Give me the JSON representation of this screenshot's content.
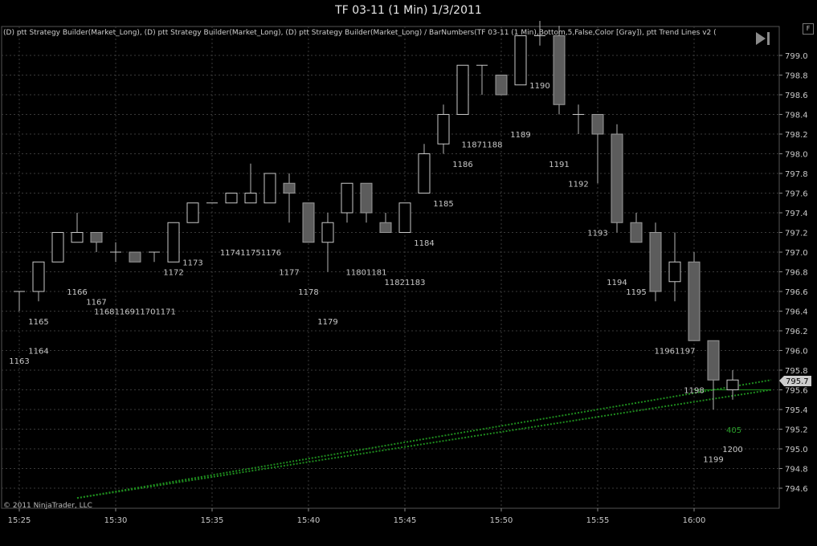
{
  "window": {
    "title": "TF 03-11 (1 Min)  1/3/2011",
    "flag_button": "F"
  },
  "chart": {
    "indicator_legend": "(D)  ptt Strategy Builder(Market_Long), (D)  ptt Strategy Builder(Market_Long), (D)  ptt Strategy Builder(Market_Long) / BarNumbers(TF 03-11 (1 Min),Bottom,5,False,Color [Gray]),  ptt Trend Lines v2  (",
    "copyright": "© 2011 NinjaTrader, LLC",
    "current_price": "795.7",
    "trend_value_label": "405",
    "play_icon": "skip-forward-icon",
    "colors": {
      "background": "#000000",
      "grid": "#3a3a3a",
      "up_candle_fill": "#000000",
      "up_candle_stroke": "#c8c8c8",
      "down_candle_fill": "#5c5c5c",
      "down_candle_stroke": "#9a9a9a",
      "wick": "#b4b4b4",
      "trend_line": "#1e8c1e",
      "label_text": "#c8c8c8",
      "price_marker_bg": "#cccccc"
    }
  },
  "chart_data": {
    "type": "candlestick",
    "y_axis": {
      "range": [
        794.5,
        799.1
      ],
      "ticks": [
        "794.6",
        "794.8",
        "795.0",
        "795.2",
        "795.4",
        "795.6",
        "795.8",
        "796.0",
        "796.2",
        "796.4",
        "796.6",
        "796.8",
        "797.0",
        "797.2",
        "797.4",
        "797.6",
        "797.8",
        "798.0",
        "798.2",
        "798.4",
        "798.6",
        "798.8",
        "799.0"
      ]
    },
    "x_axis": {
      "ticks": [
        "15:25",
        "15:30",
        "15:35",
        "15:40",
        "15:45",
        "15:50",
        "15:55",
        "16:00"
      ]
    },
    "time_range": [
      "15:24.6",
      "16:03.3"
    ],
    "grid": true,
    "candles": [
      {
        "t": "15:25",
        "o": 796.6,
        "h": 796.6,
        "l": 796.4,
        "c": 796.6
      },
      {
        "t": "15:26",
        "o": 796.6,
        "h": 796.9,
        "l": 796.5,
        "c": 796.9
      },
      {
        "t": "15:27",
        "o": 796.9,
        "h": 797.2,
        "l": 796.9,
        "c": 797.2
      },
      {
        "t": "15:28",
        "o": 797.1,
        "h": 797.4,
        "l": 797.1,
        "c": 797.2
      },
      {
        "t": "15:29",
        "o": 797.2,
        "h": 797.2,
        "l": 797.0,
        "c": 797.1
      },
      {
        "t": "15:30",
        "o": 797.0,
        "h": 797.1,
        "l": 796.9,
        "c": 797.0
      },
      {
        "t": "15:31",
        "o": 797.0,
        "h": 797.0,
        "l": 796.9,
        "c": 796.9
      },
      {
        "t": "15:32",
        "o": 797.0,
        "h": 797.0,
        "l": 796.9,
        "c": 797.0
      },
      {
        "t": "15:33",
        "o": 796.9,
        "h": 797.3,
        "l": 796.9,
        "c": 797.3
      },
      {
        "t": "15:34",
        "o": 797.3,
        "h": 797.5,
        "l": 797.3,
        "c": 797.5
      },
      {
        "t": "15:35",
        "o": 797.5,
        "h": 797.5,
        "l": 797.5,
        "c": 797.5
      },
      {
        "t": "15:36",
        "o": 797.5,
        "h": 797.6,
        "l": 797.5,
        "c": 797.6
      },
      {
        "t": "15:37",
        "o": 797.5,
        "h": 797.9,
        "l": 797.5,
        "c": 797.6
      },
      {
        "t": "15:38",
        "o": 797.5,
        "h": 797.8,
        "l": 797.5,
        "c": 797.8
      },
      {
        "t": "15:39",
        "o": 797.7,
        "h": 797.8,
        "l": 797.3,
        "c": 797.6
      },
      {
        "t": "15:40",
        "o": 797.5,
        "h": 797.5,
        "l": 797.1,
        "c": 797.1
      },
      {
        "t": "15:41",
        "o": 797.1,
        "h": 797.4,
        "l": 796.8,
        "c": 797.3
      },
      {
        "t": "15:42",
        "o": 797.4,
        "h": 797.7,
        "l": 797.3,
        "c": 797.7
      },
      {
        "t": "15:43",
        "o": 797.7,
        "h": 797.7,
        "l": 797.3,
        "c": 797.4
      },
      {
        "t": "15:44",
        "o": 797.3,
        "h": 797.4,
        "l": 797.2,
        "c": 797.2
      },
      {
        "t": "15:45",
        "o": 797.2,
        "h": 797.5,
        "l": 797.2,
        "c": 797.5
      },
      {
        "t": "15:46",
        "o": 797.6,
        "h": 798.1,
        "l": 797.6,
        "c": 798.0
      },
      {
        "t": "15:47",
        "o": 798.1,
        "h": 798.5,
        "l": 798.0,
        "c": 798.4
      },
      {
        "t": "15:48",
        "o": 798.4,
        "h": 798.9,
        "l": 798.4,
        "c": 798.9
      },
      {
        "t": "15:49",
        "o": 798.9,
        "h": 798.9,
        "l": 798.6,
        "c": 798.9
      },
      {
        "t": "15:50",
        "o": 798.8,
        "h": 798.8,
        "l": 798.6,
        "c": 798.6
      },
      {
        "t": "15:51",
        "o": 798.7,
        "h": 799.2,
        "l": 798.7,
        "c": 799.2
      },
      {
        "t": "15:52",
        "o": 799.2,
        "h": 799.4,
        "l": 799.1,
        "c": 799.2
      },
      {
        "t": "15:53",
        "o": 799.2,
        "h": 799.3,
        "l": 798.4,
        "c": 798.5
      },
      {
        "t": "15:54",
        "o": 798.4,
        "h": 798.5,
        "l": 798.2,
        "c": 798.4
      },
      {
        "t": "15:55",
        "o": 798.4,
        "h": 798.4,
        "l": 797.7,
        "c": 798.2
      },
      {
        "t": "15:56",
        "o": 798.2,
        "h": 798.3,
        "l": 797.2,
        "c": 797.3
      },
      {
        "t": "15:57",
        "o": 797.3,
        "h": 797.4,
        "l": 797.1,
        "c": 797.1
      },
      {
        "t": "15:58",
        "o": 797.2,
        "h": 797.3,
        "l": 796.5,
        "c": 796.6
      },
      {
        "t": "15:59",
        "o": 796.7,
        "h": 797.2,
        "l": 796.5,
        "c": 796.9
      },
      {
        "t": "16:00",
        "o": 796.9,
        "h": 797.0,
        "l": 796.1,
        "c": 796.1
      },
      {
        "t": "16:01",
        "o": 796.1,
        "h": 796.1,
        "l": 795.4,
        "c": 795.7
      },
      {
        "t": "16:02",
        "o": 795.6,
        "h": 795.8,
        "l": 795.5,
        "c": 795.7
      }
    ],
    "bar_numbers": [
      {
        "text": "1163",
        "t": "15:25",
        "price": 795.9
      },
      {
        "text": "1164",
        "t": "15:26",
        "price": 796.0
      },
      {
        "text": "1165",
        "t": "15:26",
        "price": 796.3
      },
      {
        "text": "1166",
        "t": "15:28",
        "price": 796.6
      },
      {
        "text": "1167",
        "t": "15:29",
        "price": 796.5
      },
      {
        "text": "1168116911701171",
        "t": "15:31",
        "price": 796.4
      },
      {
        "text": "1172",
        "t": "15:33",
        "price": 796.8
      },
      {
        "text": "1173",
        "t": "15:34",
        "price": 796.9
      },
      {
        "text": "117411751176",
        "t": "15:37",
        "price": 797.0
      },
      {
        "text": "1177",
        "t": "15:39",
        "price": 796.8
      },
      {
        "text": "1178",
        "t": "15:40",
        "price": 796.6
      },
      {
        "text": "1179",
        "t": "15:41",
        "price": 796.3
      },
      {
        "text": "11801181",
        "t": "15:43",
        "price": 796.8
      },
      {
        "text": "11821183",
        "t": "15:45",
        "price": 796.7
      },
      {
        "text": "1184",
        "t": "15:46",
        "price": 797.1
      },
      {
        "text": "1185",
        "t": "15:47",
        "price": 797.5
      },
      {
        "text": "1186",
        "t": "15:48",
        "price": 797.9
      },
      {
        "text": "11871188",
        "t": "15:49",
        "price": 798.1
      },
      {
        "text": "1189",
        "t": "15:51",
        "price": 798.2
      },
      {
        "text": "1190",
        "t": "15:52",
        "price": 798.7
      },
      {
        "text": "1191",
        "t": "15:53",
        "price": 797.9
      },
      {
        "text": "1192",
        "t": "15:54",
        "price": 797.7
      },
      {
        "text": "1193",
        "t": "15:55",
        "price": 797.2
      },
      {
        "text": "1194",
        "t": "15:56",
        "price": 796.7
      },
      {
        "text": "1195",
        "t": "15:57",
        "price": 796.6
      },
      {
        "text": "11961197",
        "t": "15:59",
        "price": 796.0
      },
      {
        "text": "1198",
        "t": "16:00",
        "price": 795.6
      },
      {
        "text": "1199",
        "t": "16:01",
        "price": 794.9
      },
      {
        "text": "1200",
        "t": "16:02",
        "price": 795.0
      }
    ],
    "trend_lines": [
      {
        "from": {
          "t": "15:28",
          "price": 794.5
        },
        "to": {
          "t": "16:04",
          "price": 795.7
        }
      },
      {
        "from": {
          "t": "15:28",
          "price": 794.5
        },
        "to": {
          "t": "16:04",
          "price": 795.6
        }
      }
    ],
    "horizontal_line": {
      "price": 795.6,
      "from_t": "16:00",
      "to_t": "16:04"
    }
  }
}
